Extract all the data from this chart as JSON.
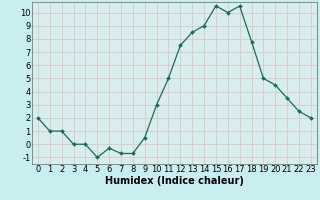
{
  "x": [
    0,
    1,
    2,
    3,
    4,
    5,
    6,
    7,
    8,
    9,
    10,
    11,
    12,
    13,
    14,
    15,
    16,
    17,
    18,
    19,
    20,
    21,
    22,
    23
  ],
  "y": [
    2,
    1,
    1,
    0,
    0,
    -1,
    -0.3,
    -0.7,
    -0.7,
    0.5,
    3,
    5,
    7.5,
    8.5,
    9,
    10.5,
    10,
    10.5,
    7.8,
    5,
    4.5,
    3.5,
    2.5,
    2
  ],
  "line_color": "#1a6b5a",
  "marker": "D",
  "marker_size": 2.0,
  "bg_color": "#c8eef0",
  "grid_color": "#d8c8c8",
  "inner_bg": "#d8eeee",
  "xlabel": "Humidex (Indice chaleur)",
  "xlim": [
    -0.5,
    23.5
  ],
  "ylim": [
    -1.5,
    10.8
  ],
  "yticks": [
    -1,
    0,
    1,
    2,
    3,
    4,
    5,
    6,
    7,
    8,
    9,
    10
  ],
  "xticks": [
    0,
    1,
    2,
    3,
    4,
    5,
    6,
    7,
    8,
    9,
    10,
    11,
    12,
    13,
    14,
    15,
    16,
    17,
    18,
    19,
    20,
    21,
    22,
    23
  ],
  "xlabel_fontsize": 7,
  "tick_fontsize": 6
}
